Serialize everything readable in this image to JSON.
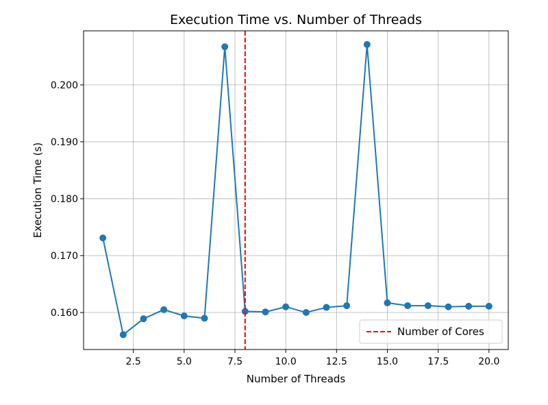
{
  "chart_data": {
    "type": "line",
    "title": "Execution Time vs. Number of Threads",
    "xlabel": "Number of Threads",
    "ylabel": "Execution Time (s)",
    "xlim": [
      0.05,
      20.95
    ],
    "ylim": [
      0.1535,
      0.2095
    ],
    "xticks": [
      2.5,
      5.0,
      7.5,
      10.0,
      12.5,
      15.0,
      17.5,
      20.0
    ],
    "xtick_labels": [
      "2.5",
      "5.0",
      "7.5",
      "10.0",
      "12.5",
      "15.0",
      "17.5",
      "20.0"
    ],
    "yticks": [
      0.16,
      0.17,
      0.18,
      0.19,
      0.2
    ],
    "ytick_labels": [
      "0.160",
      "0.170",
      "0.180",
      "0.190",
      "0.200"
    ],
    "grid": true,
    "legend_position": "lower-right",
    "series": [
      {
        "color": "#1f77b4",
        "marker": "circle",
        "x": [
          1,
          2,
          3,
          4,
          5,
          6,
          7,
          8,
          9,
          10,
          11,
          12,
          13,
          14,
          15,
          16,
          17,
          18,
          19,
          20
        ],
        "y": [
          0.1731,
          0.1561,
          0.1589,
          0.1605,
          0.1594,
          0.159,
          0.2067,
          0.1602,
          0.1601,
          0.161,
          0.16,
          0.1609,
          0.1612,
          0.2071,
          0.1617,
          0.1612,
          0.1612,
          0.161,
          0.1611,
          0.1611
        ]
      }
    ],
    "vlines": [
      {
        "name": "Number of Cores",
        "x": 8,
        "color": "#ff0000",
        "style": "dashed"
      }
    ]
  }
}
